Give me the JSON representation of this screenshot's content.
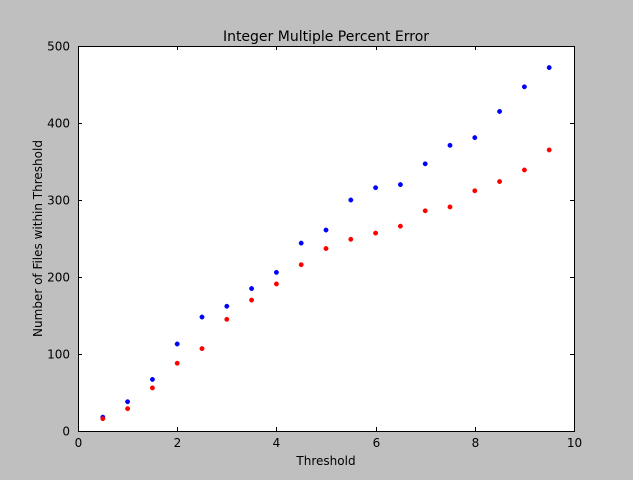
{
  "chart_data": {
    "type": "scatter",
    "title": "Integer Multiple Percent Error",
    "xlabel": "Threshold",
    "ylabel": "Number of Files within Threshold",
    "xlim": [
      0,
      10
    ],
    "ylim": [
      0,
      500
    ],
    "xticks": [
      0,
      2,
      4,
      6,
      8,
      10
    ],
    "yticks": [
      0,
      100,
      200,
      300,
      400,
      500
    ],
    "grid": false,
    "legend": "none",
    "x": [
      0.5,
      1.0,
      1.5,
      2.0,
      2.5,
      3.0,
      3.5,
      4.0,
      4.5,
      5.0,
      5.5,
      6.0,
      6.5,
      7.0,
      7.5,
      8.0,
      8.5,
      9.0,
      9.5
    ],
    "series": [
      {
        "color": "#0000ff",
        "values": [
          18,
          38,
          67,
          113,
          148,
          162,
          185,
          206,
          244,
          261,
          300,
          316,
          320,
          347,
          371,
          381,
          415,
          447,
          472
        ]
      },
      {
        "color": "#ff0000",
        "values": [
          16,
          29,
          56,
          88,
          107,
          145,
          170,
          191,
          216,
          237,
          249,
          257,
          266,
          286,
          291,
          312,
          324,
          339,
          365
        ]
      }
    ],
    "background_color": "#bfbfbf",
    "plot_background_color": "#ffffff"
  }
}
